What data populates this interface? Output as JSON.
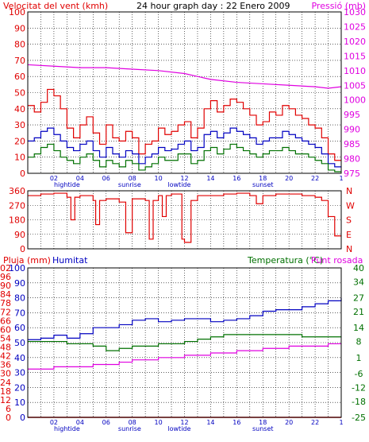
{
  "header": {
    "left_title": "Velocitat del vent (kmh)",
    "center_title": "24 hour graph day : 22 Enero 2009",
    "right_title": "Pressió (mb)"
  },
  "panel3_labels": {
    "rain": "Pluja (mm)",
    "humidity": "Humitat",
    "temperature": "Temperatura (°C)",
    "dewpoint": "Punt rosada"
  },
  "hour_labels": [
    "02",
    "04",
    "06",
    "08",
    "10",
    "12",
    "14",
    "16",
    "18",
    "20",
    "22",
    "1"
  ],
  "event_labels": [
    {
      "text": "hightide",
      "hour": 3.0
    },
    {
      "text": "sunrise",
      "hour": 7.8
    },
    {
      "text": "lowtide",
      "hour": 11.6
    },
    {
      "text": "sunset",
      "hour": 18.0
    }
  ],
  "colors": {
    "red": "#e00000",
    "blue": "#0000c0",
    "green": "#007000",
    "magenta": "#e000e0",
    "grid": "#000000",
    "axis_blue": "#0000c0"
  },
  "chart_data": [
    {
      "type": "line",
      "name": "wind-pressure",
      "x_range_hours": [
        0,
        24
      ],
      "y_left": {
        "ticks": [
          0,
          5,
          10,
          15,
          20,
          25,
          30,
          35,
          40,
          45,
          50,
          55,
          60,
          65,
          70,
          75,
          80,
          85,
          90,
          95,
          100
        ],
        "ylim": [
          0,
          100
        ]
      },
      "y_right": {
        "ticks": [
          975,
          980,
          985,
          990,
          995,
          1000,
          1005,
          1010,
          1015,
          1020,
          1025,
          1030
        ],
        "ylim": [
          975,
          1030
        ]
      },
      "series": [
        {
          "key": "gust",
          "axis": "left",
          "color": "#e00000",
          "x": [
            0,
            0.5,
            1,
            1.5,
            2,
            2.5,
            3,
            3.5,
            4,
            4.5,
            5,
            5.5,
            6,
            6.5,
            7,
            7.5,
            8,
            8.5,
            9,
            9.5,
            10,
            10.5,
            11,
            11.5,
            12,
            12.5,
            13,
            13.5,
            14,
            14.5,
            15,
            15.5,
            16,
            16.5,
            17,
            17.5,
            18,
            18.5,
            19,
            19.5,
            20,
            20.5,
            21,
            21.5,
            22,
            22.5,
            23,
            23.5
          ],
          "y": [
            42,
            38,
            44,
            52,
            48,
            40,
            28,
            22,
            30,
            35,
            25,
            18,
            30,
            22,
            20,
            26,
            22,
            12,
            18,
            20,
            28,
            24,
            26,
            30,
            32,
            22,
            28,
            40,
            45,
            38,
            42,
            46,
            44,
            40,
            36,
            30,
            32,
            38,
            36,
            42,
            40,
            36,
            34,
            30,
            28,
            22,
            12,
            8
          ]
        },
        {
          "key": "wind",
          "axis": "left",
          "color": "#0000c0",
          "x": [
            0,
            0.5,
            1,
            1.5,
            2,
            2.5,
            3,
            3.5,
            4,
            4.5,
            5,
            5.5,
            6,
            6.5,
            7,
            7.5,
            8,
            8.5,
            9,
            9.5,
            10,
            10.5,
            11,
            11.5,
            12,
            12.5,
            13,
            13.5,
            14,
            14.5,
            15,
            15.5,
            16,
            16.5,
            17,
            17.5,
            18,
            18.5,
            19,
            19.5,
            20,
            20.5,
            21,
            21.5,
            22,
            22.5,
            23,
            23.5
          ],
          "y": [
            20,
            22,
            26,
            28,
            24,
            20,
            16,
            14,
            18,
            20,
            14,
            10,
            16,
            12,
            10,
            14,
            12,
            6,
            10,
            12,
            16,
            14,
            15,
            18,
            20,
            14,
            16,
            24,
            26,
            22,
            25,
            28,
            26,
            24,
            22,
            18,
            20,
            22,
            22,
            26,
            24,
            22,
            20,
            18,
            16,
            12,
            6,
            4
          ]
        },
        {
          "key": "avg",
          "axis": "left",
          "color": "#007000",
          "x": [
            0,
            0.5,
            1,
            1.5,
            2,
            2.5,
            3,
            3.5,
            4,
            4.5,
            5,
            5.5,
            6,
            6.5,
            7,
            7.5,
            8,
            8.5,
            9,
            9.5,
            10,
            10.5,
            11,
            11.5,
            12,
            12.5,
            13,
            13.5,
            14,
            14.5,
            15,
            15.5,
            16,
            16.5,
            17,
            17.5,
            18,
            18.5,
            19,
            19.5,
            20,
            20.5,
            21,
            21.5,
            22,
            22.5,
            23,
            23.5
          ],
          "y": [
            10,
            12,
            16,
            18,
            14,
            10,
            8,
            6,
            10,
            12,
            8,
            4,
            8,
            6,
            4,
            8,
            6,
            2,
            4,
            6,
            10,
            8,
            8,
            12,
            12,
            6,
            8,
            14,
            16,
            12,
            15,
            18,
            16,
            14,
            12,
            10,
            12,
            14,
            14,
            16,
            14,
            12,
            12,
            10,
            8,
            6,
            2,
            1
          ]
        },
        {
          "key": "pressure",
          "axis": "right",
          "color": "#e000e0",
          "x": [
            0,
            2,
            4,
            6,
            8,
            10,
            12,
            13,
            14,
            16,
            18,
            20,
            22,
            23,
            24
          ],
          "y": [
            1012,
            1011.5,
            1011,
            1011,
            1010.5,
            1010,
            1009,
            1008,
            1007,
            1006,
            1005.5,
            1005,
            1004.5,
            1004,
            1004.5
          ]
        }
      ]
    },
    {
      "type": "line",
      "name": "wind-direction",
      "x_range_hours": [
        0,
        24
      ],
      "y_left": {
        "ticks": [
          0,
          90,
          180,
          270,
          360
        ],
        "ylim": [
          0,
          360
        ]
      },
      "y_right_labels": [
        "N",
        "W",
        "S",
        "E",
        "N"
      ],
      "series": [
        {
          "key": "direction",
          "color": "#e00000",
          "x": [
            0,
            1,
            2,
            3,
            3.3,
            3.6,
            4,
            5,
            5.2,
            5.5,
            6,
            7,
            7.5,
            8,
            9,
            9.3,
            9.6,
            10,
            10.3,
            10.6,
            11,
            11.5,
            11.8,
            12,
            12.5,
            13,
            14,
            15,
            16,
            17,
            17.5,
            18,
            19,
            20,
            21,
            22,
            22.5,
            23,
            23.5
          ],
          "y": [
            330,
            340,
            345,
            320,
            180,
            320,
            330,
            300,
            150,
            300,
            310,
            290,
            100,
            310,
            300,
            60,
            300,
            330,
            200,
            330,
            340,
            340,
            60,
            40,
            300,
            330,
            330,
            340,
            345,
            330,
            280,
            330,
            340,
            340,
            330,
            320,
            300,
            200,
            80
          ]
        }
      ]
    },
    {
      "type": "line",
      "name": "rain-humidity-temp",
      "x_range_hours": [
        0,
        24
      ],
      "y_left": {
        "ticks": [
          0,
          6,
          12,
          18,
          24,
          30,
          36,
          42,
          48,
          54,
          60,
          66,
          72,
          78,
          84,
          90,
          96,
          102
        ],
        "tick_labels": [
          "0",
          "10",
          "20",
          "30",
          "40",
          "50",
          "60",
          "70",
          "80",
          "90",
          "100"
        ],
        "ylim": [
          0,
          100
        ]
      },
      "y_right": {
        "ticks": [
          -25,
          -18,
          -12,
          -6,
          1,
          8,
          14,
          21,
          27,
          34,
          40
        ],
        "ylim": [
          -25,
          40
        ]
      },
      "series": [
        {
          "key": "rain",
          "axis": "left",
          "color": "#e00000",
          "x": [
            0,
            24
          ],
          "y": [
            0,
            0
          ]
        },
        {
          "key": "humidity",
          "axis": "left",
          "color": "#0000c0",
          "x": [
            0,
            1,
            2,
            3,
            4,
            5,
            6,
            7,
            8,
            9,
            10,
            11,
            12,
            13,
            14,
            15,
            16,
            17,
            18,
            19,
            20,
            21,
            22,
            23,
            24
          ],
          "y": [
            52,
            53,
            55,
            53,
            56,
            60,
            60,
            62,
            65,
            66,
            64,
            65,
            66,
            66,
            64,
            65,
            66,
            68,
            71,
            72,
            72,
            74,
            76,
            78,
            80
          ]
        },
        {
          "key": "temperature",
          "axis": "right",
          "color": "#007000",
          "x": [
            0,
            1,
            2,
            3,
            4,
            5,
            6,
            7,
            8,
            9,
            10,
            11,
            12,
            13,
            14,
            15,
            16,
            17,
            18,
            19,
            20,
            21,
            22,
            23,
            24
          ],
          "y": [
            8,
            8,
            8,
            7,
            7,
            6,
            4,
            5,
            6,
            6,
            7,
            7,
            8,
            9,
            10,
            11,
            11,
            11,
            11,
            11,
            11,
            10,
            10,
            10,
            10
          ]
        },
        {
          "key": "dewpoint",
          "axis": "right",
          "color": "#e000e0",
          "x": [
            0,
            1,
            2,
            3,
            4,
            5,
            6,
            7,
            8,
            9,
            10,
            11,
            12,
            13,
            14,
            15,
            16,
            17,
            18,
            19,
            20,
            21,
            22,
            23,
            24
          ],
          "y": [
            -4,
            -4,
            -3,
            -3,
            -3,
            -2,
            -2,
            -1,
            0,
            0,
            1,
            1,
            2,
            2,
            3,
            3,
            4,
            4,
            5,
            5,
            6,
            6,
            6,
            7,
            7
          ]
        }
      ]
    }
  ]
}
